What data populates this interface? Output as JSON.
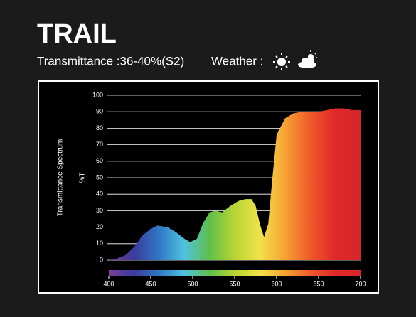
{
  "chart_data": {
    "type": "area",
    "title": "TRAIL",
    "subtitle": "Transmittance :36-40%(S2)",
    "weather_label": "Weather :",
    "ylabel": "Transmittance Spectrum",
    "yunit": "%T",
    "x": [
      400,
      410,
      420,
      430,
      440,
      450,
      458,
      470,
      480,
      490,
      497,
      505,
      512,
      520,
      527,
      535,
      545,
      555,
      563,
      570,
      575,
      580,
      585,
      590,
      595,
      600,
      610,
      620,
      630,
      640,
      650,
      660,
      670,
      680,
      690,
      700
    ],
    "values": [
      0,
      1,
      3,
      8,
      15,
      19,
      21,
      20,
      17,
      13,
      11,
      13,
      22,
      29,
      30,
      29,
      33,
      36,
      37,
      37,
      33,
      22,
      14,
      22,
      50,
      76,
      86,
      89,
      90,
      90,
      90,
      91,
      92,
      92,
      91,
      91
    ],
    "xlim": [
      400,
      700
    ],
    "ylim": [
      0,
      100
    ],
    "xticks": [
      400,
      450,
      500,
      550,
      600,
      650,
      700
    ],
    "yticks": [
      0,
      10,
      20,
      30,
      40,
      50,
      60,
      70,
      80,
      90,
      100
    ],
    "grid": true,
    "spectrum_colors": [
      "#7b3f98",
      "#3a3b9c",
      "#2f78c4",
      "#4fc3e0",
      "#5fbf4a",
      "#b8d433",
      "#f0e24a",
      "#f7a233",
      "#ef5a2a",
      "#e02828",
      "#d8262a"
    ]
  }
}
